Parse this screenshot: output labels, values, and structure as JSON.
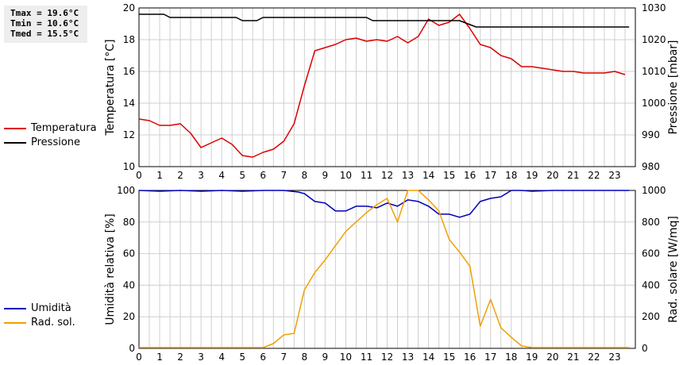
{
  "stats": {
    "tmax": "Tmax = 19.6°C",
    "tmin": "Tmin = 10.6°C",
    "tmed": "Tmed = 15.5°C"
  },
  "colors": {
    "temperature": "#dd0000",
    "pressure": "#000000",
    "humidity": "#0000bb",
    "radiation": "#f0a000",
    "grid": "#cfcfcf"
  },
  "legend_top": [
    {
      "label": "Temperatura",
      "color": "#dd0000"
    },
    {
      "label": "Pressione",
      "color": "#000000"
    }
  ],
  "legend_bottom": [
    {
      "label": "Umidità",
      "color": "#0000bb"
    },
    {
      "label": "Rad. sol.",
      "color": "#f0a000"
    }
  ],
  "chart_data": [
    {
      "type": "line",
      "grid": true,
      "x_ticks": [
        "0",
        "1",
        "2",
        "3",
        "4",
        "5",
        "6",
        "7",
        "8",
        "9",
        "10",
        "11",
        "12",
        "13",
        "14",
        "15",
        "16",
        "17",
        "18",
        "19",
        "20",
        "21",
        "22",
        "23"
      ],
      "xlim": [
        0,
        24
      ],
      "ylabel": "Temperatura [°C]",
      "ylim": [
        10,
        20
      ],
      "y_ticks": [
        10,
        12,
        14,
        16,
        18,
        20
      ],
      "y2label": "Pressione [mbar]",
      "y2lim": [
        980,
        1030
      ],
      "y2_ticks": [
        980,
        990,
        1000,
        1010,
        1020,
        1030
      ],
      "series": [
        {
          "name": "Temperatura",
          "axis": "left",
          "color": "#dd0000",
          "x": [
            0,
            0.5,
            1,
            1.5,
            2,
            2.5,
            3,
            3.5,
            4,
            4.5,
            5,
            5.5,
            6,
            6.5,
            7,
            7.5,
            8,
            8.5,
            9,
            9.5,
            10,
            10.5,
            11,
            11.5,
            12,
            12.5,
            13,
            13.5,
            14,
            14.5,
            15,
            15.5,
            16,
            16.5,
            17,
            17.5,
            18,
            18.5,
            19,
            19.5,
            20,
            20.5,
            21,
            21.5,
            22,
            22.5,
            23,
            23.5
          ],
          "y": [
            13.0,
            12.9,
            12.6,
            12.6,
            12.7,
            12.1,
            11.2,
            11.5,
            11.8,
            11.4,
            10.7,
            10.6,
            10.9,
            11.1,
            11.6,
            12.7,
            15.1,
            17.3,
            17.5,
            17.7,
            18.0,
            18.1,
            17.9,
            18.0,
            17.9,
            18.2,
            17.8,
            18.2,
            19.3,
            18.9,
            19.1,
            19.6,
            18.7,
            17.7,
            17.5,
            17.0,
            16.8,
            16.3,
            16.3,
            16.2,
            16.1,
            16.0,
            16.0,
            15.9,
            15.9,
            15.9,
            16.0,
            15.8
          ]
        },
        {
          "name": "Pressione",
          "axis": "right",
          "color": "#000000",
          "x": [
            0,
            1.2,
            1.5,
            4.7,
            5.0,
            5.7,
            6.0,
            11.0,
            11.3,
            15.5,
            15.9,
            16.3,
            23.7
          ],
          "y": [
            1028,
            1028,
            1027,
            1027,
            1026,
            1026,
            1027,
            1027,
            1026,
            1026,
            1025,
            1024,
            1024
          ]
        }
      ]
    },
    {
      "type": "line",
      "grid": true,
      "x_ticks": [
        "0",
        "1",
        "2",
        "3",
        "4",
        "5",
        "6",
        "7",
        "8",
        "9",
        "10",
        "11",
        "12",
        "13",
        "14",
        "15",
        "16",
        "17",
        "18",
        "19",
        "20",
        "21",
        "22",
        "23"
      ],
      "xlim": [
        0,
        24
      ],
      "ylabel": "Umidità relativa [%]",
      "ylim": [
        0,
        100
      ],
      "y_ticks": [
        0,
        20,
        40,
        60,
        80,
        100
      ],
      "y2label": "Rad. solare [W/mq]",
      "y2lim": [
        0,
        1000
      ],
      "y2_ticks": [
        0,
        200,
        400,
        600,
        800,
        1000
      ],
      "series": [
        {
          "name": "Umidità",
          "axis": "left",
          "color": "#0000bb",
          "x": [
            0,
            1,
            2,
            3,
            4,
            5,
            6,
            7,
            7.7,
            8,
            8.5,
            9,
            9.5,
            10,
            10.5,
            11,
            11.5,
            12,
            12.5,
            13,
            13.5,
            14,
            14.5,
            15,
            15.5,
            16,
            16.5,
            17,
            17.5,
            18,
            18.5,
            19,
            20,
            21,
            22,
            23,
            23.7
          ],
          "y": [
            100,
            99.5,
            100,
            99.5,
            100,
            99.5,
            100,
            100,
            99,
            98,
            93,
            92,
            87,
            87,
            90,
            90,
            89,
            92,
            90,
            94,
            93,
            90,
            85,
            85,
            83,
            85,
            93,
            95,
            96,
            100,
            100,
            99.5,
            100,
            100,
            100,
            100,
            100
          ]
        },
        {
          "name": "Rad. sol.",
          "axis": "right",
          "color": "#f0a000",
          "x": [
            0,
            6,
            6.5,
            7,
            7.5,
            8,
            8.5,
            9,
            9.5,
            10,
            10.5,
            11,
            11.5,
            12,
            12.5,
            13,
            13.5,
            14,
            14.5,
            15,
            15.5,
            16,
            16.5,
            17,
            17.5,
            18,
            18.5,
            19,
            20,
            21,
            22,
            23,
            23.7
          ],
          "y": [
            5,
            5,
            30,
            85,
            95,
            370,
            480,
            560,
            650,
            740,
            800,
            860,
            910,
            950,
            800,
            1000,
            1000,
            940,
            870,
            690,
            610,
            520,
            140,
            310,
            130,
            70,
            15,
            5,
            5,
            5,
            5,
            5,
            5
          ]
        }
      ]
    }
  ]
}
